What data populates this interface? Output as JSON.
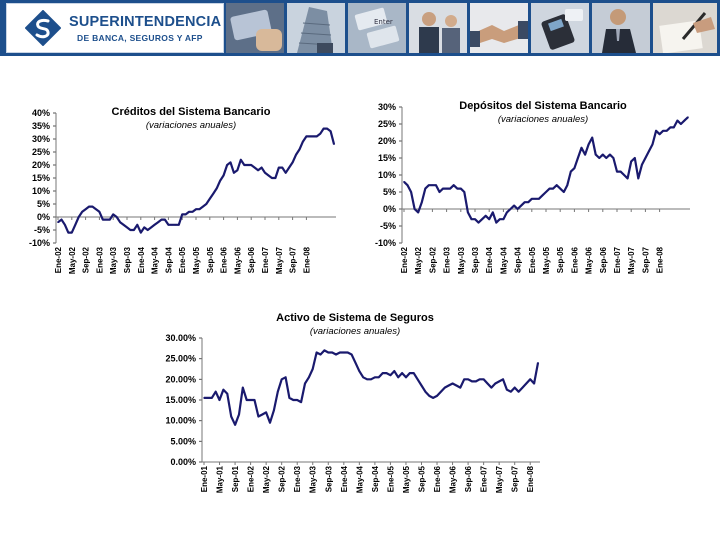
{
  "header": {
    "brand_line1": "SUPERINTENDENCIA",
    "brand_line2": "DE BANCA, SEGUROS Y AFP",
    "photo_strip": [
      {
        "name": "photo-card-in-hand",
        "icon": "card-icon"
      },
      {
        "name": "photo-office-building",
        "icon": "building-icon"
      },
      {
        "name": "photo-keyboard-enter",
        "icon": "keyboard-icon"
      },
      {
        "name": "photo-business-meeting",
        "icon": "people-icon"
      },
      {
        "name": "photo-handshake",
        "icon": "handshake-icon"
      },
      {
        "name": "photo-card-terminal",
        "icon": "terminal-icon"
      },
      {
        "name": "photo-businessman",
        "icon": "person-icon"
      },
      {
        "name": "photo-signing-document",
        "icon": "pen-icon"
      }
    ],
    "colors": {
      "banner": "#1d4f8c",
      "line": "#1a1a6e"
    }
  },
  "chart_data": [
    {
      "id": "creditos",
      "type": "line",
      "title": "Créditos del Sistema Bancario",
      "subtitle": "(variaciones anuales)",
      "ytick_labels": [
        "40%",
        "35%",
        "30%",
        "25%",
        "20%",
        "15%",
        "10%",
        "5%",
        "0%",
        "-5%",
        "-10%"
      ],
      "ylim": [
        -10,
        40
      ],
      "xtick_labels": [
        "Ene-02",
        "May-02",
        "Sep-02",
        "Ene-03",
        "May-03",
        "Sep-03",
        "Ene-04",
        "May-04",
        "Sep-04",
        "Ene-05",
        "May-05",
        "Sep-05",
        "Ene-06",
        "May-06",
        "Sep-06",
        "Ene-07",
        "May-07",
        "Sep-07",
        "Ene-08"
      ],
      "x_start": "Ene-02",
      "values": [
        -2,
        -1,
        -3,
        -6,
        -6,
        -3,
        0,
        2,
        3,
        4,
        4,
        3,
        2,
        -1,
        -1,
        -1,
        1,
        0,
        -2,
        -3,
        -4,
        -5,
        -5,
        -3,
        -6,
        -4,
        -5,
        -4,
        -3,
        -2,
        -1,
        -1,
        -3,
        -3,
        -3,
        -3,
        1,
        1,
        2,
        2,
        3,
        3,
        4,
        5,
        7,
        9,
        11,
        14,
        16,
        20,
        21,
        17,
        18,
        22,
        20,
        20,
        20,
        19,
        18,
        19,
        17,
        16,
        15,
        15,
        19,
        19,
        17,
        19,
        21,
        24,
        26,
        29,
        31,
        31,
        31,
        31,
        32,
        34,
        34,
        33,
        28
      ]
    },
    {
      "id": "depositos",
      "type": "line",
      "title": "Depósitos del Sistema Bancario",
      "subtitle": "(variaciones anuales)",
      "ytick_labels": [
        "30%",
        "25%",
        "20%",
        "15%",
        "10%",
        "5%",
        "0%",
        "-5%",
        "-10%"
      ],
      "ylim": [
        -10,
        30
      ],
      "xtick_labels": [
        "Ene-02",
        "May-02",
        "Sep-02",
        "Ene-03",
        "May-03",
        "Sep-03",
        "Ene-04",
        "May-04",
        "Sep-04",
        "Ene-05",
        "May-05",
        "Sep-05",
        "Ene-06",
        "May-06",
        "Sep-06",
        "Ene-07",
        "May-07",
        "Sep-07",
        "Ene-08"
      ],
      "x_start": "Ene-02",
      "values": [
        8,
        7,
        5,
        0,
        -1,
        2,
        6,
        7,
        7,
        7,
        5,
        6,
        6,
        6,
        7,
        6,
        6,
        5,
        -1,
        -3,
        -3,
        -4,
        -3,
        -2,
        -3,
        -1,
        -4,
        -3,
        -3,
        -1,
        0,
        1,
        0,
        1,
        2,
        2,
        3,
        3,
        3,
        4,
        5,
        6,
        6,
        7,
        6,
        5,
        7,
        11,
        12,
        15,
        18,
        16,
        19,
        21,
        16,
        15,
        16,
        15,
        16,
        15,
        11,
        11,
        10,
        9,
        14,
        15,
        9,
        13,
        15,
        17,
        19,
        23,
        22,
        23,
        23,
        24,
        24,
        26,
        25,
        26,
        27
      ]
    },
    {
      "id": "seguros",
      "type": "line",
      "title": "Activo de Sistema de Seguros",
      "subtitle": "(variaciones anuales)",
      "ytick_labels": [
        "30.00%",
        "25.00%",
        "20.00%",
        "15.00%",
        "10.00%",
        "5.00%",
        "0.00%"
      ],
      "ylim": [
        0,
        30
      ],
      "xtick_labels": [
        "Ene-01",
        "May-01",
        "Sep-01",
        "Ene-02",
        "May-02",
        "Sep-02",
        "Ene-03",
        "May-03",
        "Sep-03",
        "Ene-04",
        "May-04",
        "Sep-04",
        "Ene-05",
        "May-05",
        "Sep-05",
        "Ene-06",
        "May-06",
        "Sep-06",
        "Ene-07",
        "May-07",
        "Sep-07",
        "Ene-08"
      ],
      "x_start": "Ene-01",
      "values": [
        15.5,
        15.5,
        15.5,
        17,
        15,
        17.5,
        16.5,
        11,
        9,
        11.5,
        18,
        15,
        15,
        15,
        11,
        11.5,
        12,
        9.5,
        12.5,
        17,
        20,
        20.5,
        15.5,
        15,
        15,
        14.5,
        19,
        20.5,
        22.5,
        26.5,
        26,
        27,
        26.5,
        26.5,
        26,
        26.5,
        26.5,
        26.5,
        26,
        24,
        22,
        20.5,
        20,
        20,
        20.5,
        20.5,
        21.5,
        21.5,
        21,
        22,
        20.5,
        21.5,
        20.5,
        21.5,
        21.5,
        20,
        18.5,
        17,
        16,
        15.5,
        16,
        17,
        18,
        18.5,
        19,
        18.5,
        18,
        20,
        20,
        19.5,
        19.5,
        20,
        20,
        19,
        18,
        19,
        19.5,
        20,
        17.5,
        17,
        18,
        17,
        18,
        19,
        20,
        19,
        24
      ]
    }
  ]
}
